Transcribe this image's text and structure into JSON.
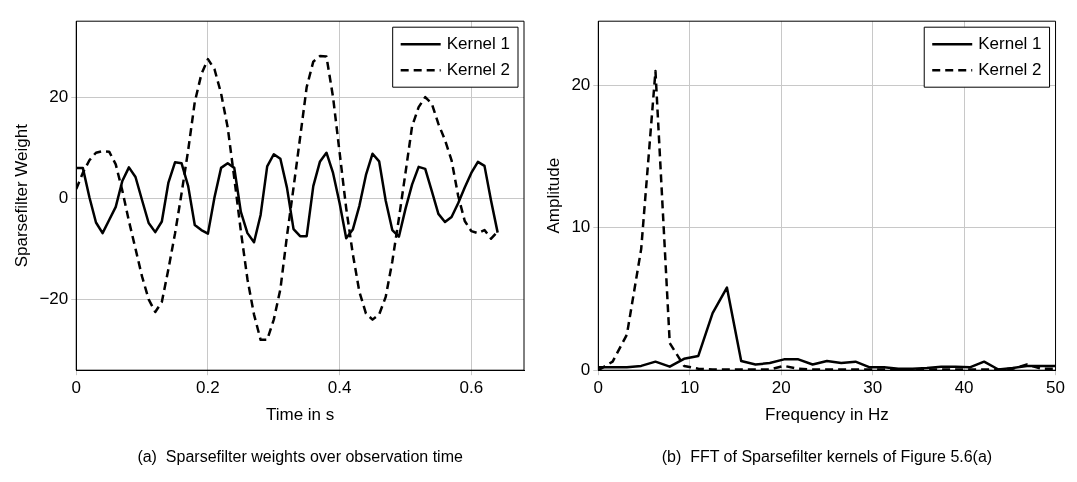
{
  "chart_data": [
    {
      "type": "line",
      "xlabel": "Time in s",
      "ylabel": "Sparsefilter Weight",
      "annotations": [
        "(a)  Sparsefilter weights over observation time"
      ],
      "xlim": [
        0,
        0.68
      ],
      "ylim": [
        -34,
        35
      ],
      "xticks": [
        0,
        0.2,
        0.4,
        0.6
      ],
      "yticks": [
        {
          "value": -20,
          "label": "−20"
        },
        0,
        20
      ],
      "grid": true,
      "legend": "top right",
      "marker": "none",
      "x": [
        0,
        0.01,
        0.02,
        0.03,
        0.04,
        0.05,
        0.06,
        0.07,
        0.08,
        0.09,
        0.1,
        0.11,
        0.12,
        0.13,
        0.14,
        0.15,
        0.16,
        0.17,
        0.18,
        0.19,
        0.2,
        0.21,
        0.22,
        0.23,
        0.24,
        0.25,
        0.26,
        0.27,
        0.28,
        0.29,
        0.3,
        0.31,
        0.32,
        0.33,
        0.34,
        0.35,
        0.36,
        0.37,
        0.38,
        0.39,
        0.4,
        0.41,
        0.42,
        0.43,
        0.44,
        0.45,
        0.46,
        0.47,
        0.48,
        0.49,
        0.5,
        0.51,
        0.52,
        0.53,
        0.54,
        0.55,
        0.56,
        0.57,
        0.58,
        0.59,
        0.6,
        0.61,
        0.62,
        0.63,
        0.64
      ],
      "series": [
        {
          "name": "Kernel 1",
          "color": "#000000",
          "line_style": "solid",
          "values": [
            6,
            6,
            0.2,
            -4.8,
            -6.9,
            -4.3,
            -1.7,
            3.4,
            6.1,
            4.2,
            -0.4,
            -4.9,
            -6.7,
            -4.6,
            3.1,
            7.1,
            6.9,
            2.4,
            -5.3,
            -6.3,
            -7,
            0.2,
            6,
            6.9,
            6,
            -2.7,
            -6.9,
            -8.7,
            -3.3,
            6.3,
            8.7,
            7.8,
            2.1,
            -6.1,
            -7.5,
            -7.5,
            2.4,
            7.2,
            9,
            5,
            -1,
            -7.9,
            -6.2,
            -1.5,
            4.6,
            8.8,
            7.3,
            -0.5,
            -6.3,
            -7.6,
            -2.1,
            2.7,
            6.2,
            5.8,
            1.4,
            -3.1,
            -4.7,
            -3.7,
            -1,
            2.1,
            5,
            7.2,
            6.4,
            -0.5,
            -6.8
          ]
        },
        {
          "name": "Kernel 2",
          "color": "#000000",
          "line_style": "dashed",
          "values": [
            1.8,
            5,
            7.5,
            9,
            9.3,
            9.2,
            6.7,
            1.5,
            -4.5,
            -10,
            -15.5,
            -20,
            -22.5,
            -20.5,
            -14,
            -7,
            1,
            9.5,
            19,
            24.5,
            27.5,
            25.5,
            20.7,
            14,
            4,
            -6.5,
            -16,
            -23,
            -28,
            -28,
            -24,
            -18,
            -7.5,
            2.1,
            12,
            22,
            27,
            28.1,
            28,
            20,
            9,
            -2,
            -11,
            -18.5,
            -22.8,
            -24,
            -23,
            -19.5,
            -12.5,
            -4,
            5,
            14.2,
            18,
            20,
            18.7,
            14.7,
            11.5,
            7.5,
            0.5,
            -4.5,
            -6.5,
            -6.9,
            -6.3,
            -8,
            -6.6
          ]
        }
      ]
    },
    {
      "type": "line",
      "xlabel": "Frequency in Hz",
      "ylabel": "Amplitude",
      "annotations": [
        "(b)  FFT of Sparsefilter kernels of Figure 5.6(a)"
      ],
      "xlim": [
        0,
        50
      ],
      "ylim": [
        0,
        24.5
      ],
      "xticks": [
        0,
        10,
        20,
        30,
        40,
        50
      ],
      "yticks": [
        0,
        10,
        20
      ],
      "grid": true,
      "legend": "top right",
      "marker": "none",
      "x": [
        0,
        1.5625,
        3.125,
        4.6875,
        6.25,
        7.8125,
        9.375,
        10.9375,
        12.5,
        14.0625,
        15.625,
        17.1875,
        18.75,
        20.3125,
        21.875,
        23.4375,
        25,
        26.5625,
        28.125,
        29.6875,
        31.25,
        32.8125,
        34.375,
        35.9375,
        37.5,
        39.0625,
        40.625,
        42.1875,
        43.75,
        45.3125,
        46.875,
        48.4375,
        50
      ],
      "series": [
        {
          "name": "Kernel 1",
          "color": "#000000",
          "line_style": "solid",
          "values": [
            0.2,
            0.2,
            0.2,
            0.3,
            0.6,
            0.25,
            0.8,
            1,
            4,
            5.8,
            0.64,
            0.4,
            0.5,
            0.76,
            0.76,
            0.4,
            0.64,
            0.5,
            0.6,
            0.2,
            0.2,
            0.1,
            0.1,
            0.15,
            0.25,
            0.25,
            0.2,
            0.6,
            0.05,
            0.15,
            0.3,
            0.3,
            0.3
          ]
        },
        {
          "name": "Kernel 2",
          "color": "#000000",
          "line_style": "dashed",
          "values": [
            0,
            0.6,
            2.5,
            8.5,
            21,
            1.9,
            0.3,
            0.1,
            0.05,
            0.05,
            0.05,
            0.05,
            0.05,
            0.3,
            0.1,
            0.05,
            0.05,
            0.05,
            0.05,
            0.05,
            0.05,
            0.05,
            0.05,
            0.05,
            0.05,
            0.05,
            0.05,
            0.05,
            0.05,
            0.1,
            0.4,
            0.1,
            0.1
          ]
        }
      ]
    }
  ]
}
